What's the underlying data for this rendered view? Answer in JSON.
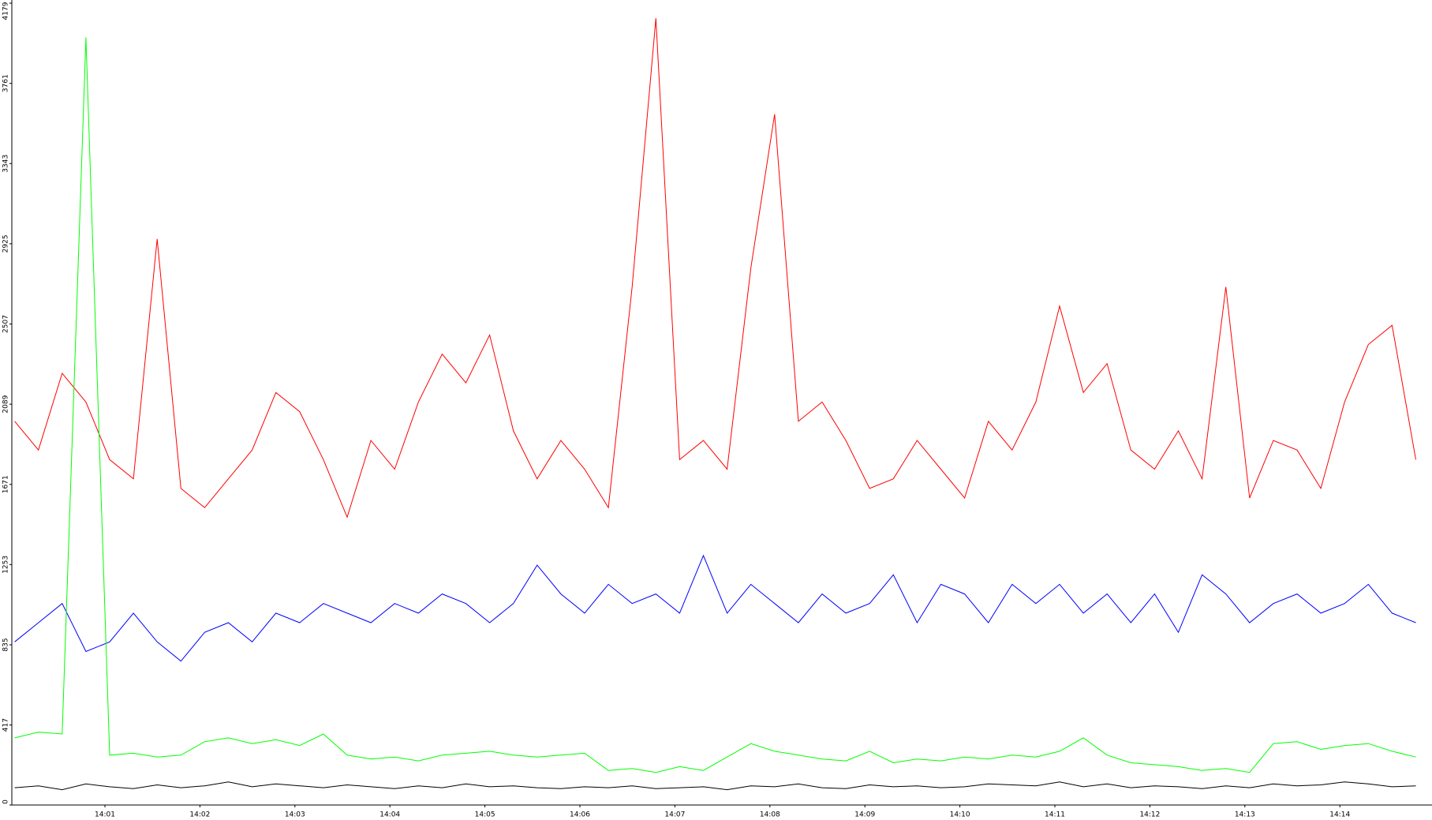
{
  "chart_data": {
    "type": "line",
    "x": [
      0.05,
      0.3,
      0.55,
      0.8,
      1.05,
      1.3,
      1.55,
      1.8,
      2.05,
      2.3,
      2.55,
      2.8,
      3.05,
      3.3,
      3.55,
      3.8,
      4.05,
      4.3,
      4.55,
      4.8,
      5.05,
      5.3,
      5.55,
      5.8,
      6.05,
      6.3,
      6.55,
      6.8,
      7.05,
      7.3,
      7.55,
      7.8,
      8.05,
      8.3,
      8.55,
      8.8,
      9.05,
      9.3,
      9.55,
      9.8,
      10.05,
      10.3,
      10.55,
      10.8,
      11.05,
      11.3,
      11.55,
      11.8,
      12.05,
      12.3,
      12.55,
      12.8,
      13.05,
      13.3,
      13.55,
      13.8,
      14.05,
      14.3,
      14.55,
      14.8
    ],
    "series": [
      {
        "color": "#ff0000",
        "values": [
          2000,
          1850,
          2250,
          2100,
          1800,
          1700,
          2950,
          1650,
          1550,
          1700,
          1850,
          2150,
          2050,
          1800,
          1500,
          1900,
          1750,
          2100,
          2350,
          2200,
          2450,
          1950,
          1700,
          1900,
          1750,
          1550,
          2700,
          4100,
          1800,
          1900,
          1750,
          2800,
          3600,
          2000,
          2100,
          1900,
          1650,
          1700,
          1900,
          1750,
          1600,
          2000,
          1850,
          2100,
          2600,
          2150,
          2300,
          1850,
          1750,
          1950,
          1700,
          2700,
          1600,
          1900,
          1850,
          1650,
          2100,
          2400,
          2500,
          1800
        ]
      },
      {
        "color": "#0000ff",
        "values": [
          850,
          950,
          1050,
          800,
          850,
          1000,
          850,
          750,
          900,
          950,
          850,
          1000,
          950,
          1050,
          1000,
          950,
          1050,
          1000,
          1100,
          1050,
          950,
          1050,
          1250,
          1100,
          1000,
          1150,
          1050,
          1100,
          1000,
          1300,
          1000,
          1150,
          1050,
          950,
          1100,
          1000,
          1050,
          1200,
          950,
          1150,
          1100,
          950,
          1150,
          1050,
          1150,
          1000,
          1100,
          950,
          1100,
          900,
          1200,
          1100,
          950,
          1050,
          1100,
          1000,
          1050,
          1150,
          1000,
          950
        ]
      },
      {
        "color": "#00ff00",
        "values": [
          350,
          380,
          370,
          4000,
          260,
          270,
          250,
          260,
          330,
          350,
          320,
          340,
          310,
          370,
          260,
          240,
          250,
          230,
          260,
          270,
          280,
          260,
          250,
          260,
          270,
          180,
          190,
          170,
          200,
          180,
          250,
          320,
          280,
          260,
          240,
          230,
          280,
          220,
          240,
          230,
          250,
          240,
          260,
          250,
          280,
          350,
          260,
          220,
          210,
          200,
          180,
          190,
          170,
          320,
          330,
          290,
          310,
          320,
          280,
          250
        ]
      },
      {
        "color": "#000000",
        "values": [
          90,
          100,
          80,
          110,
          95,
          85,
          105,
          90,
          100,
          120,
          95,
          110,
          100,
          90,
          105,
          95,
          85,
          100,
          90,
          110,
          95,
          100,
          90,
          85,
          95,
          90,
          100,
          85,
          90,
          95,
          80,
          100,
          95,
          110,
          90,
          85,
          105,
          95,
          100,
          90,
          95,
          110,
          105,
          100,
          120,
          95,
          110,
          90,
          100,
          95,
          85,
          100,
          90,
          110,
          100,
          105,
          120,
          110,
          95,
          100
        ]
      }
    ],
    "xlim": [
      0.02,
      14.97
    ],
    "xticks": [
      {
        "value": 1,
        "label": "14:01"
      },
      {
        "value": 2,
        "label": "14:02"
      },
      {
        "value": 3,
        "label": "14:03"
      },
      {
        "value": 4,
        "label": "14:04"
      },
      {
        "value": 5,
        "label": "14:05"
      },
      {
        "value": 6,
        "label": "14:06"
      },
      {
        "value": 7,
        "label": "14:07"
      },
      {
        "value": 8,
        "label": "14:08"
      },
      {
        "value": 9,
        "label": "14:09"
      },
      {
        "value": 10,
        "label": "14:10"
      },
      {
        "value": 11,
        "label": "14:11"
      },
      {
        "value": 12,
        "label": "14:12"
      },
      {
        "value": 13,
        "label": "14:13"
      },
      {
        "value": 14,
        "label": "14:14"
      }
    ],
    "ylim": [
      0,
      4179
    ],
    "yticks": [
      0,
      417,
      835,
      1253,
      1671,
      2089,
      2507,
      2925,
      3343,
      3761,
      4179
    ],
    "grid": false
  }
}
